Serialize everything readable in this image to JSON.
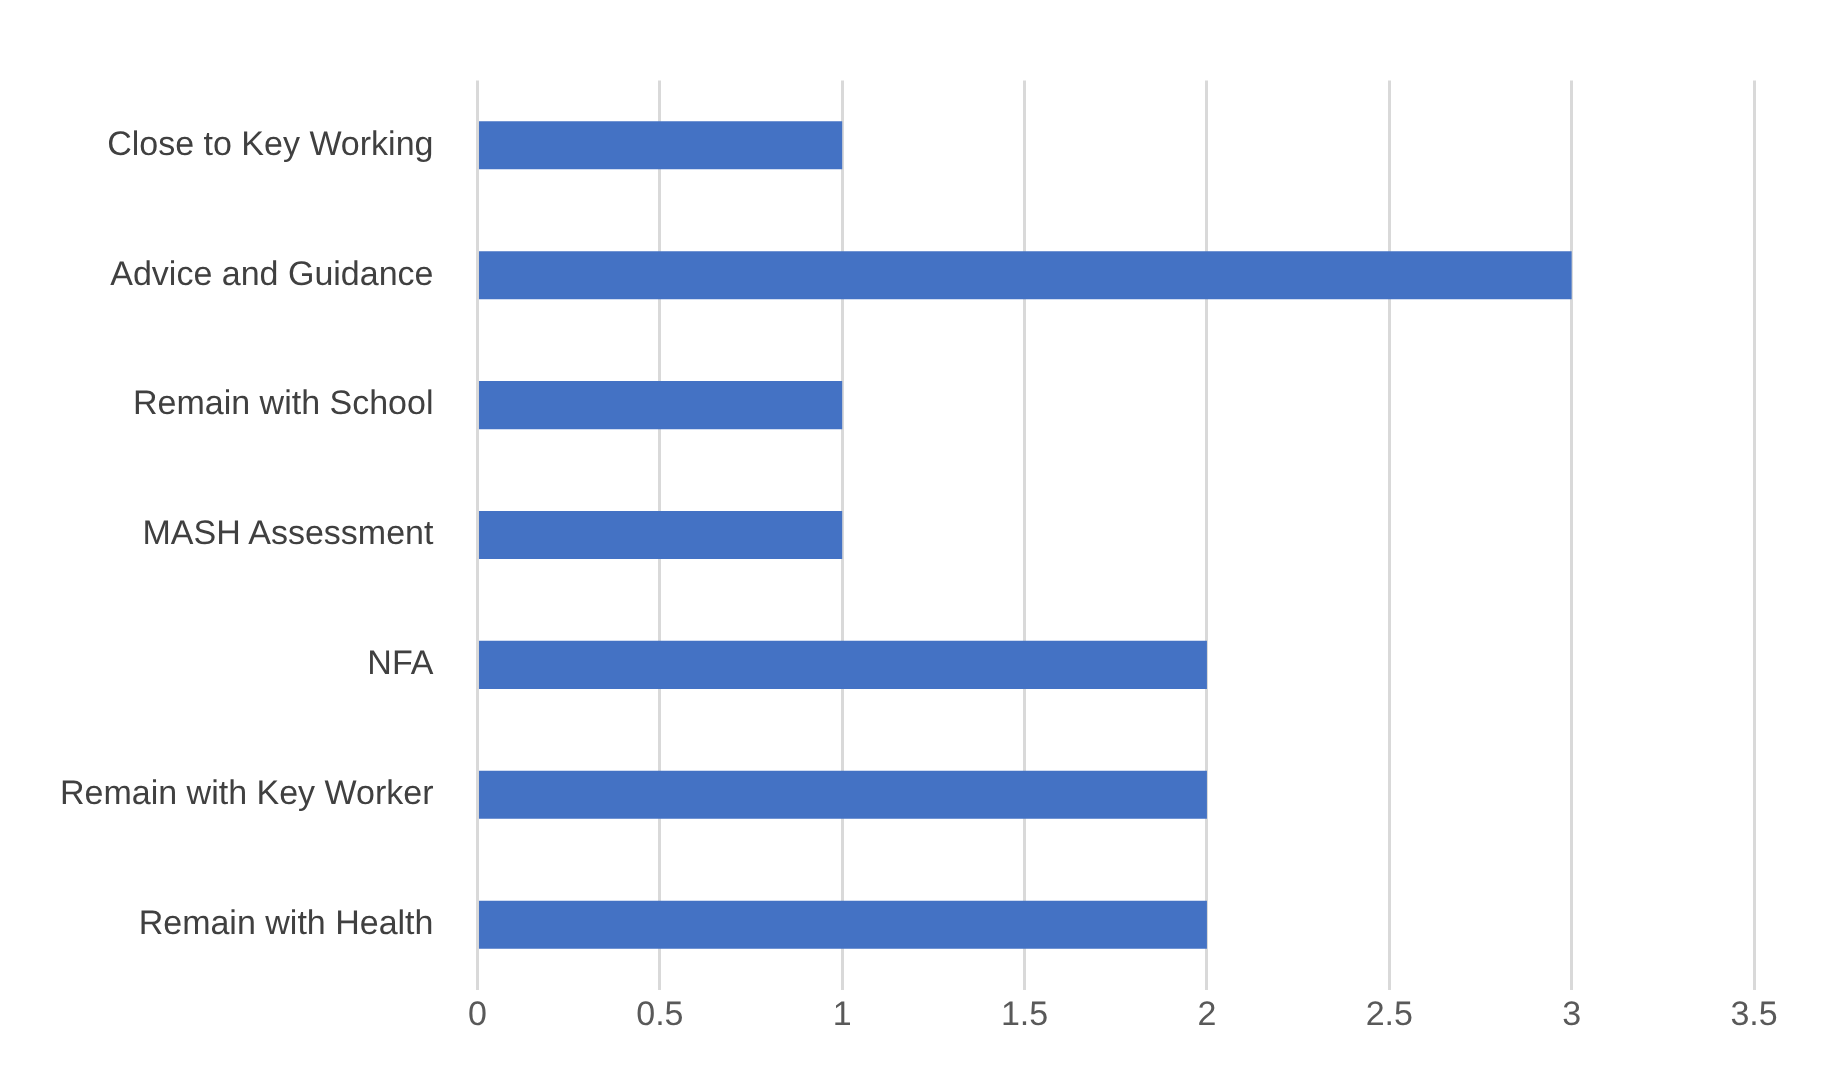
{
  "chart_data": {
    "type": "bar",
    "orientation": "horizontal",
    "categories": [
      "Close to Key Working",
      "Advice and Guidance",
      "Remain with School",
      "MASH Assessment",
      "NFA",
      "Remain with Key Worker",
      "Remain with Health"
    ],
    "values": [
      1,
      3,
      1,
      1,
      2,
      2,
      2
    ],
    "color": "#4472c4",
    "xlim": [
      0,
      3.5
    ],
    "xticks": [
      0,
      0.5,
      1,
      1.5,
      2,
      2.5,
      3,
      3.5
    ],
    "grid": "x",
    "legend": false
  }
}
